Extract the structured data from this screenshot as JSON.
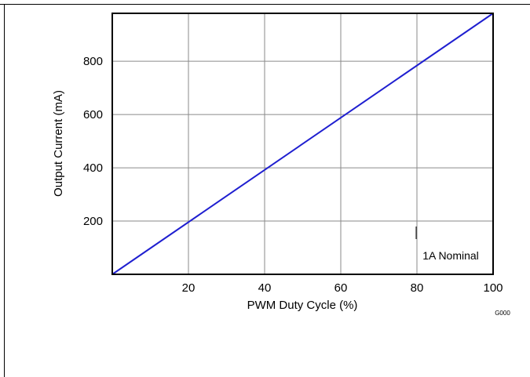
{
  "chart_data": {
    "type": "line",
    "title": "",
    "xlabel": "PWM Duty Cycle (%)",
    "ylabel": "Output Current (mA)",
    "xlim": [
      0,
      100
    ],
    "ylim": [
      0,
      980
    ],
    "x_ticks": [
      20,
      40,
      60,
      80,
      100
    ],
    "y_ticks": [
      200,
      400,
      600,
      800
    ],
    "grid": true,
    "annotation": "1A Nominal",
    "figure_id": "G000",
    "series": [
      {
        "color": "#1f1fd0",
        "x": [
          0,
          100
        ],
        "y": [
          0,
          980
        ]
      }
    ]
  }
}
